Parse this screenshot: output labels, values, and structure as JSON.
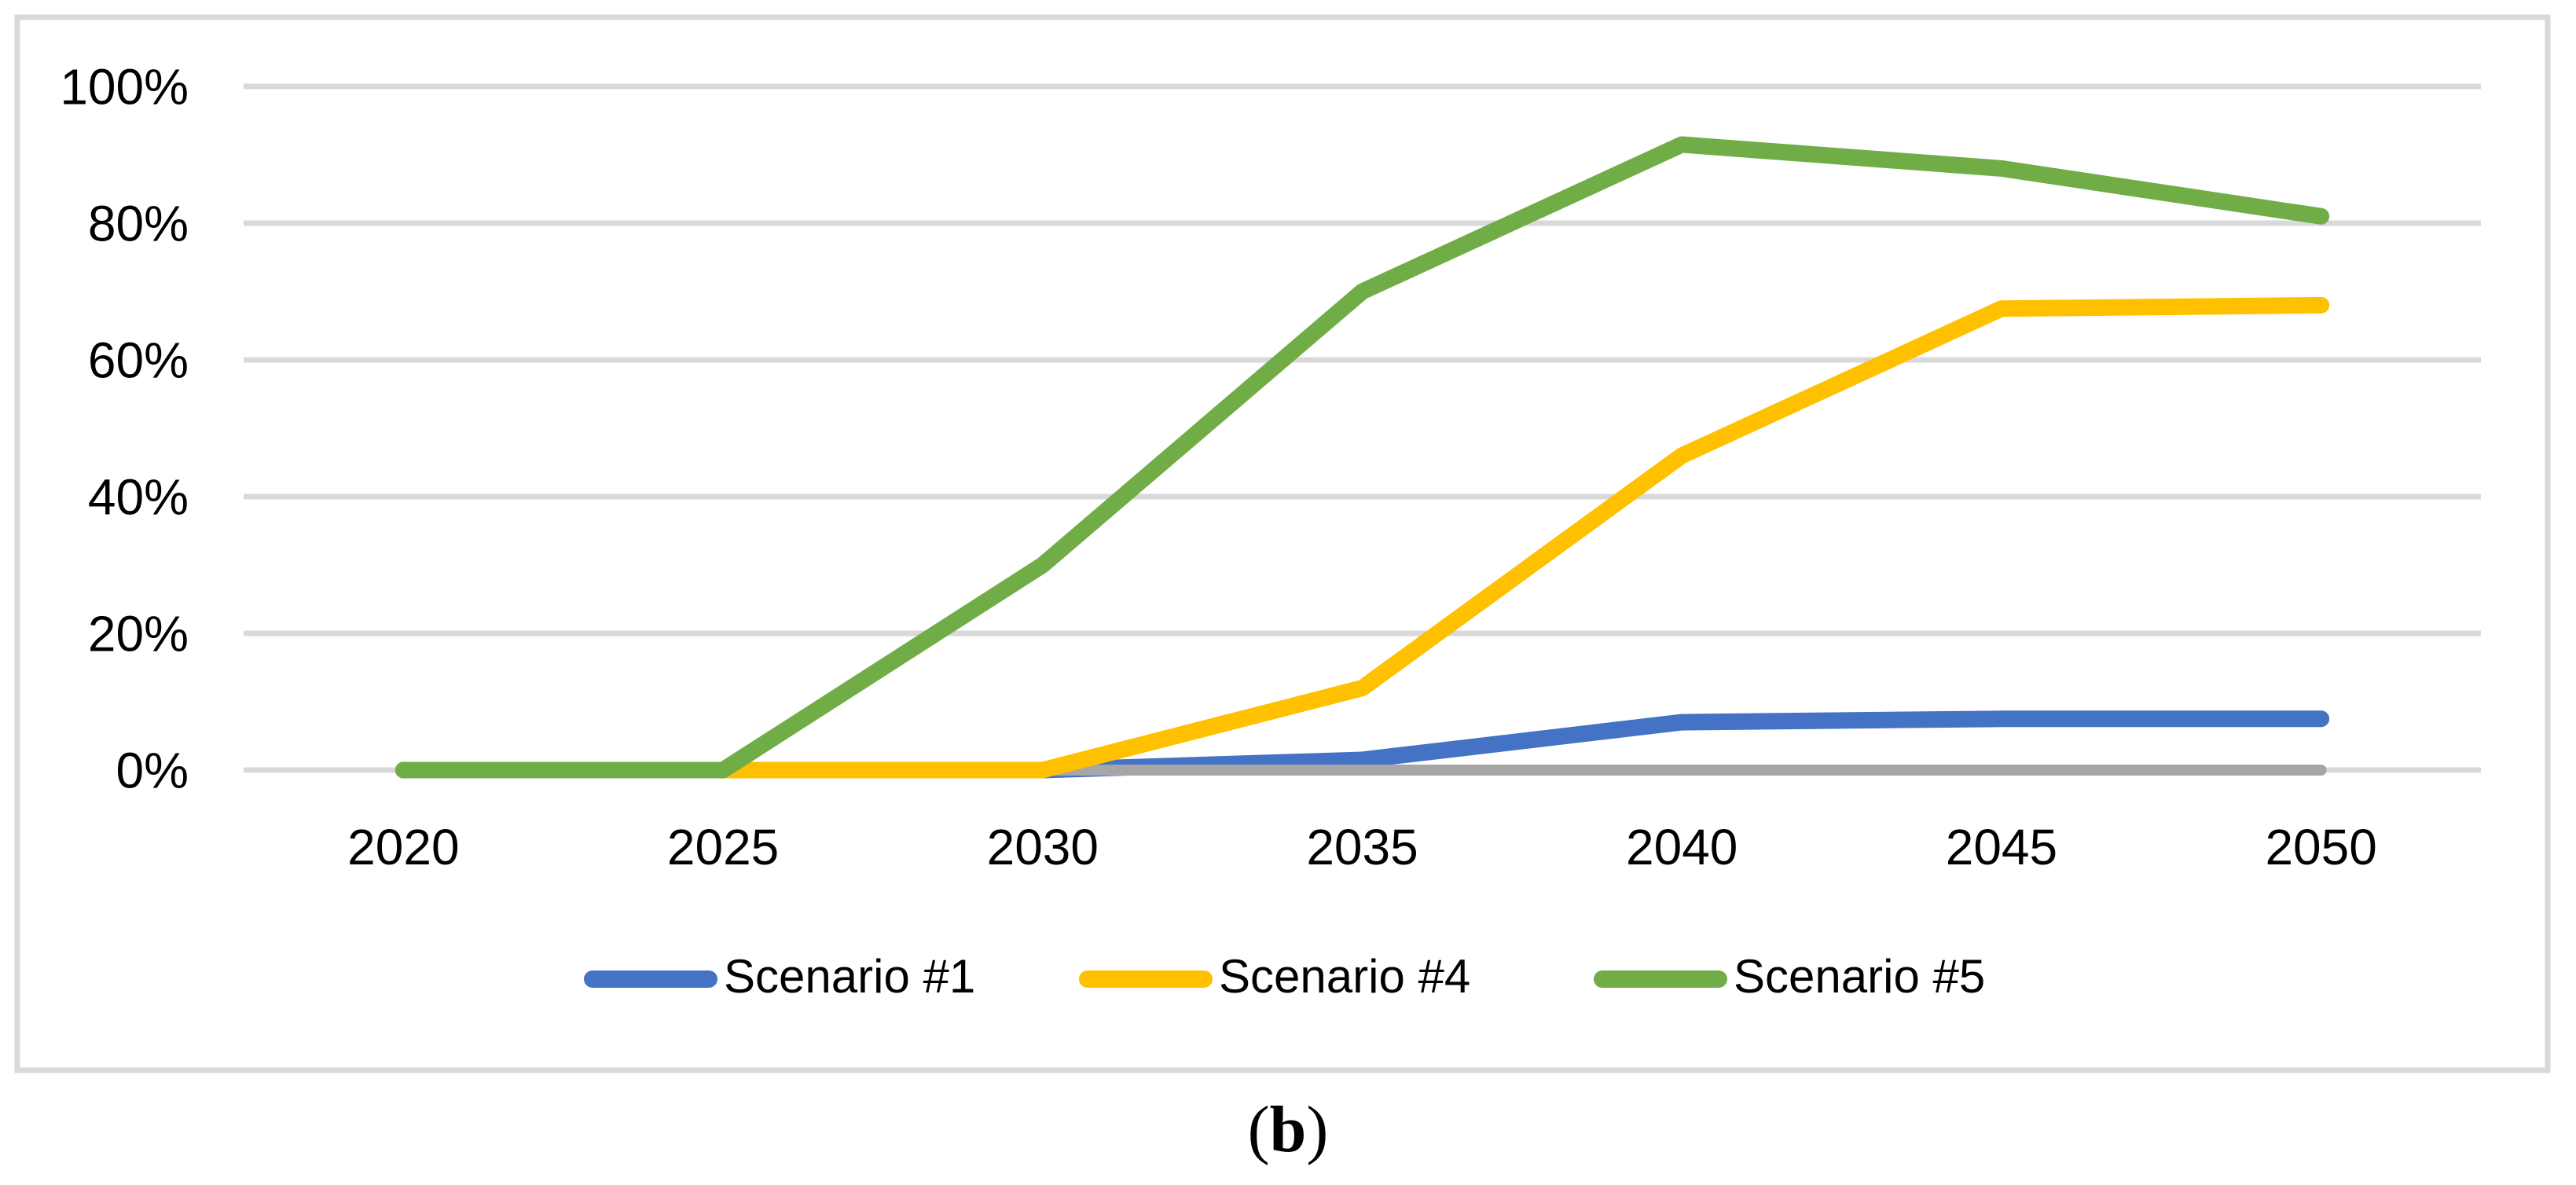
{
  "caption": {
    "open": "(",
    "letter": "b",
    "close": ")"
  },
  "chart_data": {
    "type": "line",
    "title": "",
    "xlabel": "",
    "ylabel": "",
    "categories": [
      "2020",
      "2025",
      "2030",
      "2035",
      "2040",
      "2045",
      "2050"
    ],
    "series": [
      {
        "name": "Scenario #1",
        "color": "#4472C4",
        "in_legend": true,
        "values": [
          0,
          0,
          0,
          1.5,
          7,
          7.5,
          7.5
        ]
      },
      {
        "name": "",
        "color": "#A6A6A6",
        "in_legend": false,
        "values": [
          0,
          0,
          0,
          0,
          0,
          0,
          0
        ]
      },
      {
        "name": "Scenario #4",
        "color": "#FFC000",
        "in_legend": true,
        "values": [
          0,
          0,
          0,
          12,
          46,
          67.5,
          68
        ]
      },
      {
        "name": "Scenario #5",
        "color": "#70AD47",
        "in_legend": true,
        "values": [
          0,
          0,
          30,
          70,
          91.5,
          88,
          81
        ]
      }
    ],
    "yticks": [
      {
        "label": "0%",
        "value": 0
      },
      {
        "label": "20%",
        "value": 20
      },
      {
        "label": "40%",
        "value": 40
      },
      {
        "label": "60%",
        "value": 60
      },
      {
        "label": "80%",
        "value": 80
      },
      {
        "label": "100%",
        "value": 100
      }
    ],
    "ylim": [
      0,
      100
    ],
    "grid": true,
    "legend_position": "bottom",
    "colors": {
      "gridline": "#D9D9D9",
      "axis_line": "#D9D9D9",
      "chart_border": "#D9D9D9",
      "text": "#000000",
      "background": "#FFFFFF"
    }
  }
}
